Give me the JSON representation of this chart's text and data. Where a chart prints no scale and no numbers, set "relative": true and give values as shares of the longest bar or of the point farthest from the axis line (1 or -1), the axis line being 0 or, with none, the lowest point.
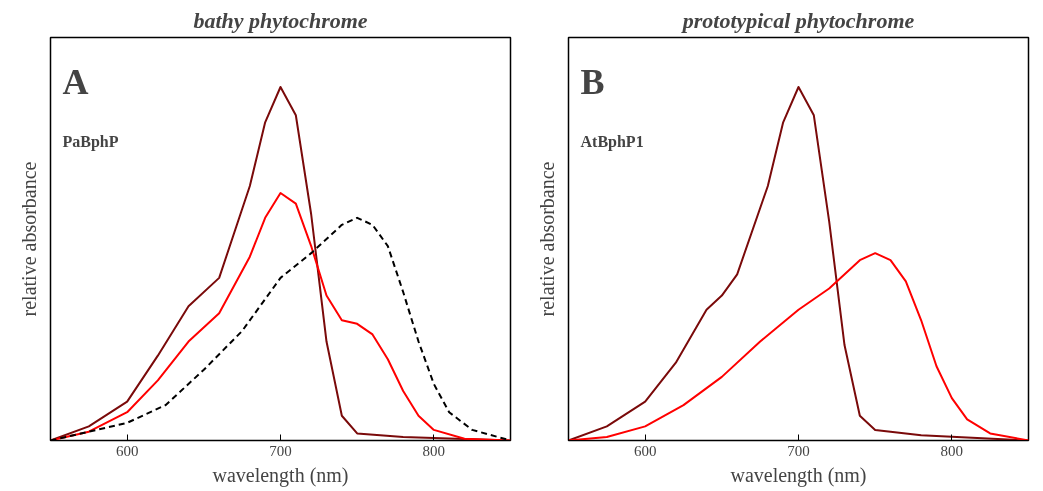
{
  "chart_data": [
    {
      "type": "line",
      "title": "bathy phytochrome",
      "xlabel": "wavelength (nm)",
      "ylabel": "relative absorbance",
      "relative": true,
      "xlim": [
        550,
        850
      ],
      "xticks": [
        600,
        700,
        800
      ],
      "grid": false,
      "annotations": [
        "A",
        "PaBphP"
      ],
      "series": [
        {
          "color": "#7a0a0a",
          "line_style": "solid",
          "x": [
            550,
            575,
            600,
            620,
            640,
            660,
            680,
            690,
            700,
            710,
            720,
            730,
            740,
            750,
            780,
            850
          ],
          "values": [
            0,
            0.04,
            0.11,
            0.24,
            0.38,
            0.46,
            0.72,
            0.9,
            1.0,
            0.92,
            0.64,
            0.28,
            0.07,
            0.02,
            0.01,
            0
          ]
        },
        {
          "color": "#ff0000",
          "line_style": "solid",
          "x": [
            550,
            575,
            600,
            620,
            640,
            660,
            680,
            690,
            700,
            710,
            720,
            730,
            740,
            750,
            760,
            770,
            780,
            790,
            800,
            820,
            850
          ],
          "values": [
            0,
            0.025,
            0.08,
            0.17,
            0.28,
            0.36,
            0.52,
            0.63,
            0.7,
            0.67,
            0.55,
            0.41,
            0.34,
            0.33,
            0.3,
            0.23,
            0.14,
            0.07,
            0.03,
            0.005,
            0
          ]
        },
        {
          "color": "#000000",
          "line_style": "dashed",
          "x": [
            550,
            600,
            625,
            650,
            675,
            700,
            720,
            740,
            750,
            760,
            770,
            780,
            790,
            800,
            810,
            825,
            850
          ],
          "values": [
            0,
            0.05,
            0.1,
            0.2,
            0.31,
            0.46,
            0.53,
            0.61,
            0.63,
            0.61,
            0.55,
            0.42,
            0.28,
            0.16,
            0.08,
            0.03,
            0
          ]
        }
      ]
    },
    {
      "type": "line",
      "title": "prototypical phytochrome",
      "xlabel": "wavelength (nm)",
      "ylabel": "relative absorbance",
      "relative": true,
      "xlim": [
        550,
        850
      ],
      "xticks": [
        600,
        700,
        800
      ],
      "grid": false,
      "annotations": [
        "B",
        "AtBphP1"
      ],
      "series": [
        {
          "color": "#7a0a0a",
          "line_style": "solid",
          "x": [
            550,
            575,
            600,
            620,
            640,
            650,
            660,
            680,
            690,
            700,
            710,
            720,
            730,
            740,
            750,
            780,
            850
          ],
          "values": [
            0,
            0.04,
            0.11,
            0.22,
            0.37,
            0.41,
            0.47,
            0.72,
            0.9,
            1.0,
            0.92,
            0.62,
            0.27,
            0.07,
            0.03,
            0.015,
            0
          ]
        },
        {
          "color": "#ff0000",
          "line_style": "solid",
          "x": [
            550,
            575,
            600,
            625,
            650,
            675,
            700,
            720,
            740,
            750,
            760,
            770,
            780,
            790,
            800,
            810,
            825,
            850
          ],
          "values": [
            0,
            0.01,
            0.04,
            0.1,
            0.18,
            0.28,
            0.37,
            0.43,
            0.51,
            0.53,
            0.51,
            0.45,
            0.34,
            0.21,
            0.12,
            0.06,
            0.02,
            0
          ]
        }
      ]
    }
  ]
}
